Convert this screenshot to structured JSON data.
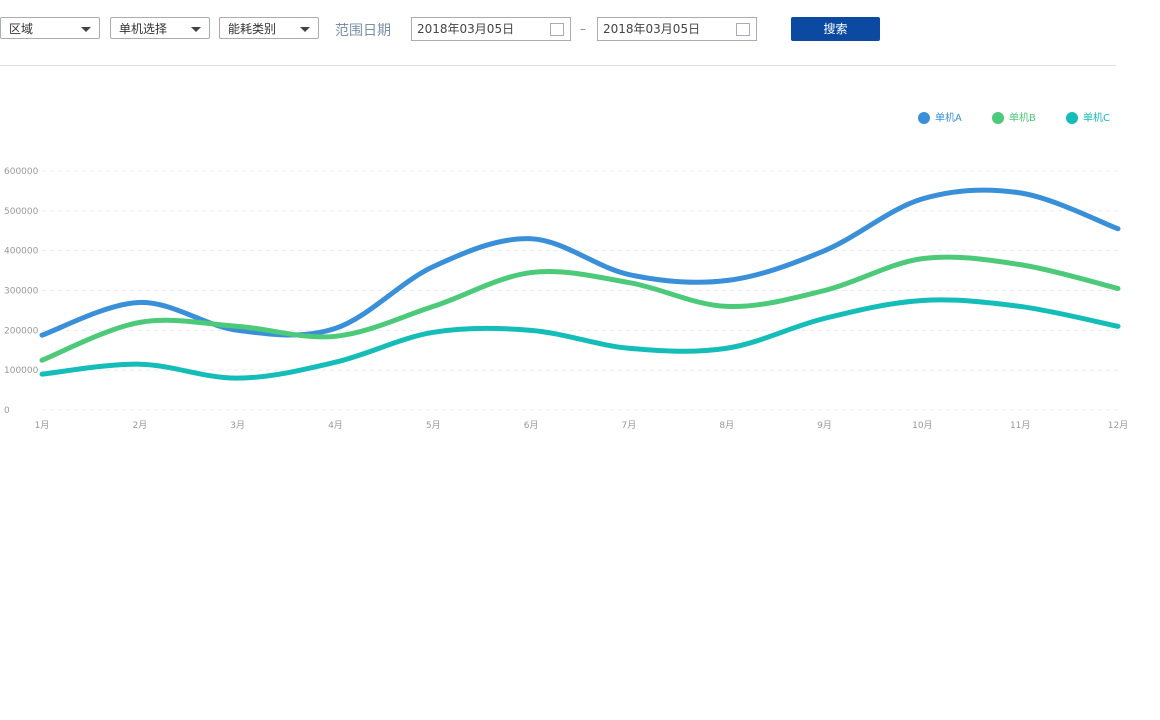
{
  "toolbar": {
    "selects": [
      "区域",
      "单机选择",
      "能耗类别"
    ],
    "date_label": "范围日期",
    "start_date": "2018年03月05日",
    "separator": "–",
    "end_date": "2018年03月05日",
    "button": "搜索"
  },
  "chart_data": {
    "type": "line",
    "smooth": true,
    "grid": true,
    "legend": "top-right",
    "categories": [
      "1月",
      "2月",
      "3月",
      "4月",
      "5月",
      "6月",
      "7月",
      "8月",
      "9月",
      "10月",
      "11月",
      "12月"
    ],
    "series": [
      {
        "name": "单机A",
        "color": "#3a8fd9",
        "values": [
          188000,
          270000,
          200000,
          205000,
          360000,
          430000,
          340000,
          325000,
          400000,
          530000,
          545000,
          455000
        ]
      },
      {
        "name": "单机B",
        "color": "#4cca7a",
        "values": [
          125000,
          220000,
          210000,
          185000,
          260000,
          345000,
          320000,
          260000,
          300000,
          380000,
          365000,
          305000
        ]
      },
      {
        "name": "单机C",
        "color": "#14bdb8",
        "values": [
          90000,
          115000,
          80000,
          120000,
          195000,
          200000,
          155000,
          155000,
          230000,
          275000,
          260000,
          210000
        ]
      }
    ],
    "ylim": [
      0,
      600000
    ],
    "yticks": [
      0,
      100000,
      200000,
      300000,
      400000,
      500000,
      600000
    ]
  }
}
